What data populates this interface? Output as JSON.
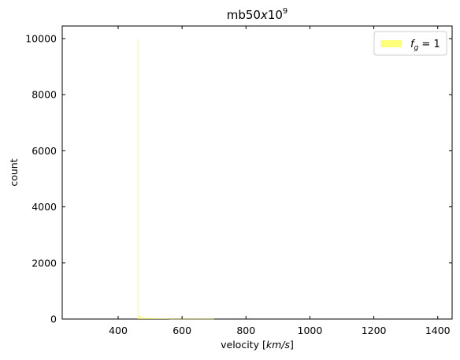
{
  "chart_data": {
    "type": "bar",
    "title": {
      "base": "mb50",
      "x": "x",
      "ten": "10",
      "exp": "9"
    },
    "xlabel": {
      "prefix": "velocity [",
      "unit": "km/s",
      "suffix": "]"
    },
    "ylabel": "count",
    "xlim": [
      225,
      1445
    ],
    "ylim": [
      0,
      10450
    ],
    "xticks": [
      400,
      600,
      800,
      1000,
      1200,
      1400
    ],
    "yticks": [
      0,
      2000,
      4000,
      6000,
      8000,
      10000
    ],
    "grid": false,
    "legend_position": "top-right",
    "series": [
      {
        "name": "f_g = 1",
        "legend_label": {
          "f": "f",
          "sub": "g",
          "rest": " = 1"
        },
        "color": "#ffff33",
        "alpha": 0.65,
        "bins": [
          {
            "x0": 461,
            "x1": 464,
            "count": 10000
          },
          {
            "x0": 464,
            "x1": 470,
            "count": 120
          },
          {
            "x0": 470,
            "x1": 500,
            "count": 40
          },
          {
            "x0": 500,
            "x1": 560,
            "count": 20
          },
          {
            "x0": 560,
            "x1": 700,
            "count": 10
          }
        ]
      }
    ]
  }
}
